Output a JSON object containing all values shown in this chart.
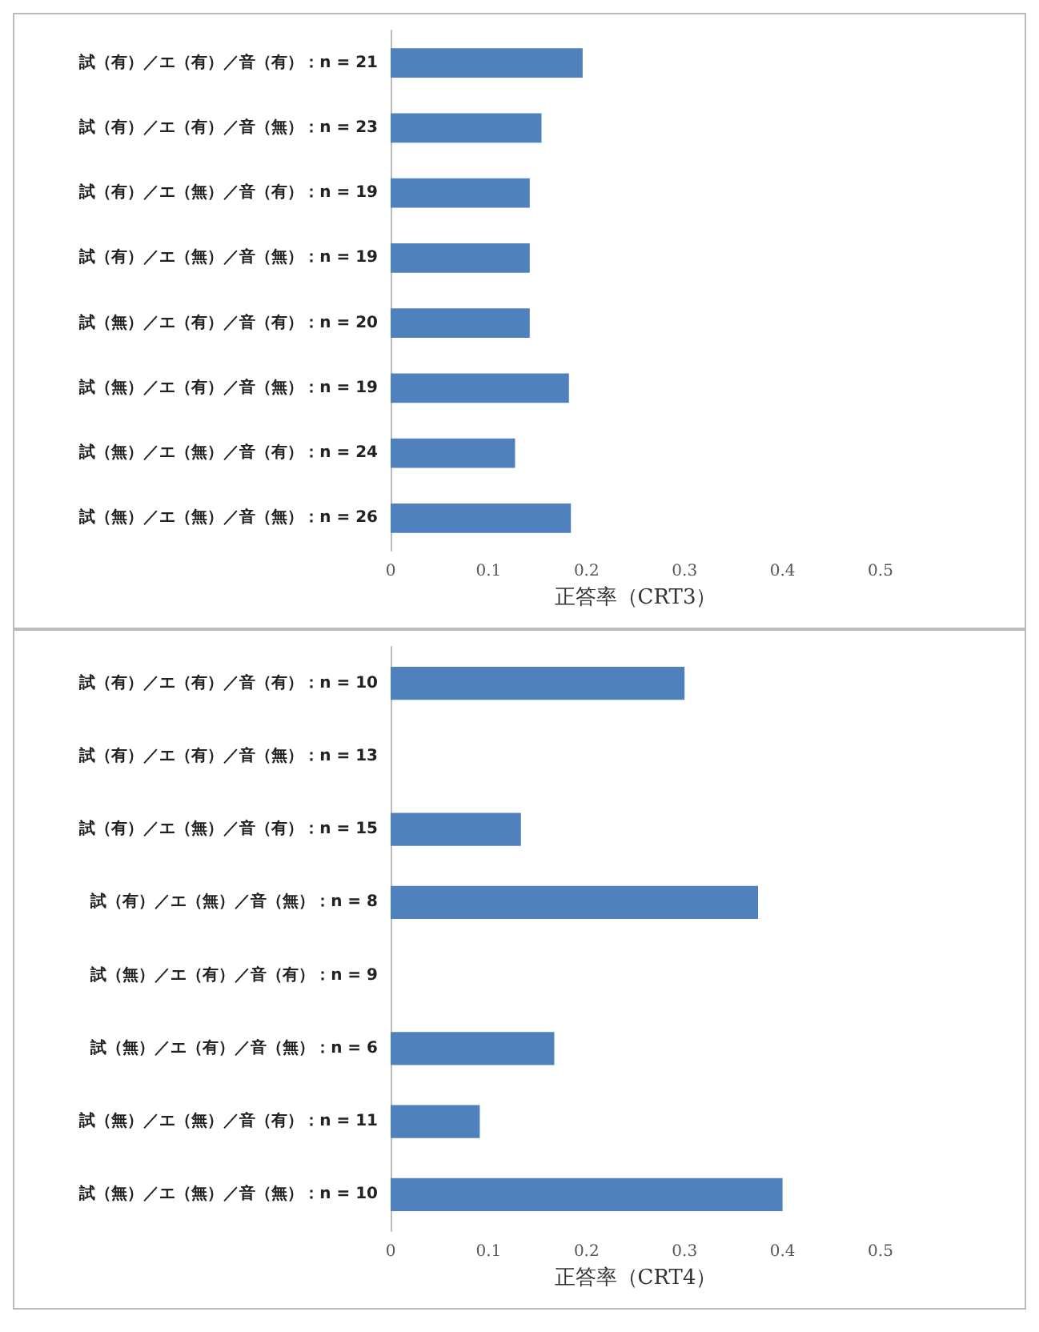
{
  "chart_data": [
    {
      "type": "bar",
      "orientation": "horizontal",
      "xlabel": "正答率（CRT3）",
      "categories": [
        "試（有）／エ（有）／音（有）：n = 21",
        "試（有）／エ（有）／音（無）：n = 23",
        "試（有）／エ（無）／音（有）：n = 19",
        "試（有）／エ（無）／音（無）：n = 19",
        "試（無）／エ（有）／音（有）：n = 20",
        "試（無）／エ（有）／音（無）：n = 19",
        "試（無）／エ（無）／音（有）：n = 24",
        "試（無）／エ（無）／音（無）：n = 26"
      ],
      "values": [
        0.196,
        0.154,
        0.142,
        0.142,
        0.142,
        0.182,
        0.127,
        0.184
      ],
      "color": "#4f81bd",
      "xlim": [
        0,
        0.5
      ],
      "xticks": [
        0,
        0.1,
        0.2,
        0.3,
        0.4,
        0.5
      ],
      "grid": false
    },
    {
      "type": "bar",
      "orientation": "horizontal",
      "xlabel": "正答率（CRT4）",
      "categories": [
        "試（有）／エ（有）／音（有）：n = 10",
        "試（有）／エ（有）／音（無）：n = 13",
        "試（有）／エ（無）／音（有）：n = 15",
        "試（有）／エ（無）／音（無）：n = 8",
        "試（無）／エ（有）／音（有）：n = 9",
        "試（無）／エ（有）／音（無）：n = 6",
        "試（無）／エ（無）／音（有）：n = 11",
        "試（無）／エ（無）／音（無）：n = 10"
      ],
      "values": [
        0.3,
        0,
        0.133,
        0.375,
        0,
        0.167,
        0.091,
        0.4
      ],
      "color": "#4f81bd",
      "xlim": [
        0,
        0.5
      ],
      "xticks": [
        0,
        0.1,
        0.2,
        0.3,
        0.4,
        0.5
      ],
      "grid": false
    }
  ]
}
